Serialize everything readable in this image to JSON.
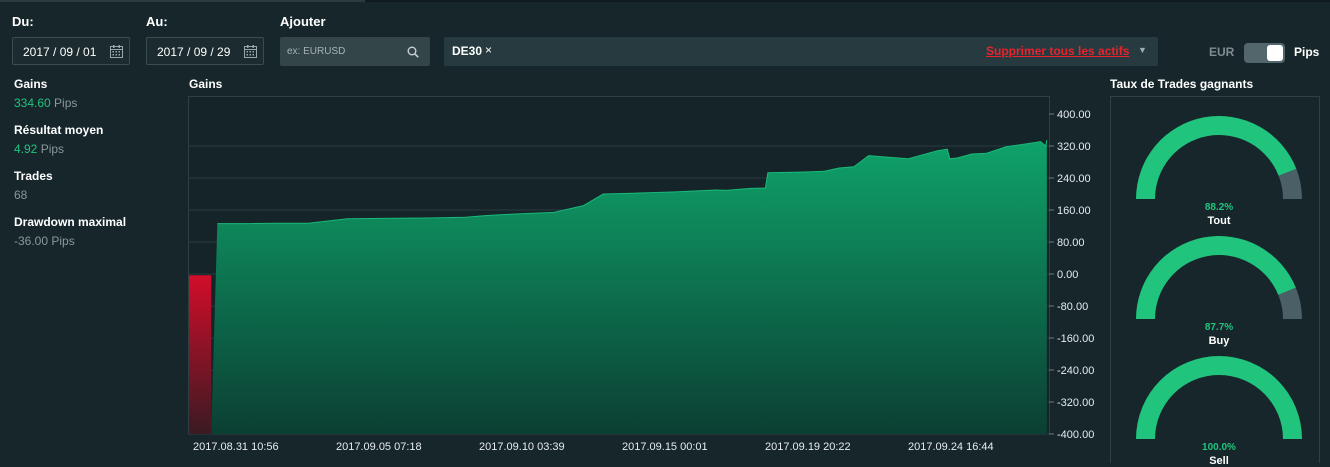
{
  "filters": {
    "from_label": "Du:",
    "from_value": "2017 / 09 / 01",
    "to_label": "Au:",
    "to_value": "2017 / 09 / 29",
    "add_label": "Ajouter",
    "search_placeholder": "ex: EURUSD"
  },
  "assets": {
    "chips": [
      "DE30"
    ],
    "remove_icon": "×",
    "clear_all_label": "Supprimer tous les actifs",
    "dropdown_icon": "▼"
  },
  "unit_toggle": {
    "left_label": "EUR",
    "right_label": "Pips",
    "selected": "Pips"
  },
  "stats": [
    {
      "label": "Gains",
      "value": "334.60",
      "unit": "Pips",
      "highlight": true
    },
    {
      "label": "Résultat moyen",
      "value": "4.92",
      "unit": "Pips",
      "highlight": true
    },
    {
      "label": "Trades",
      "value": "68",
      "unit": "",
      "highlight": false
    },
    {
      "label": "Drawdown maximal",
      "value": "-36.00",
      "unit": "Pips",
      "highlight": false
    }
  ],
  "colors": {
    "positive": "#0f9a63",
    "negative": "#d0112b",
    "accent": "#21c47d",
    "gauge_rest": "#4a5f66"
  },
  "chart_data": {
    "type": "area",
    "title": "Gains",
    "ylim": [
      -400,
      400
    ],
    "yticks": [
      "400.00",
      "320.00",
      "240.00",
      "160.00",
      "80.00",
      "0.00",
      "-80.00",
      "-160.00",
      "-240.00",
      "-320.00",
      "-400.00"
    ],
    "xticks": [
      "2017.08.31 10:56",
      "2017.09.05 07:18",
      "2017.09.10 03:39",
      "2017.09.15 00:01",
      "2017.09.19 20:22",
      "2017.09.24 16:44"
    ],
    "grid": true,
    "series": [
      {
        "x": [
          "2017-08-31 10:56",
          "2017-09-01 05:00",
          "2017-09-01 10:00",
          "2017-09-02 12:00",
          "2017-09-03 08:00",
          "2017-09-04 12:00",
          "2017-09-05 20:00",
          "2017-09-07 00:00",
          "2017-09-08 12:00",
          "2017-09-09 20:00",
          "2017-09-10 12:00",
          "2017-09-11 12:00",
          "2017-09-12 20:00",
          "2017-09-13 20:00",
          "2017-09-14 12:00",
          "2017-09-15 12:00",
          "2017-09-16 20:00",
          "2017-09-18 08:00",
          "2017-09-18 16:00",
          "2017-09-19 12:00",
          "2017-09-20 00:00",
          "2017-09-20 02:00",
          "2017-09-21 08:00",
          "2017-09-22 00:00",
          "2017-09-22 12:00",
          "2017-09-23 00:00",
          "2017-09-23 12:00",
          "2017-09-24 20:00",
          "2017-09-25 20:00",
          "2017-09-26 04:00",
          "2017-09-26 06:00",
          "2017-09-26 12:00",
          "2017-09-27 00:00",
          "2017-09-27 12:00",
          "2017-09-27 20:00",
          "2017-09-28 04:00",
          "2017-09-29 08:00",
          "2017-09-29 12:00",
          "2017-09-29 13:00"
        ],
        "y": [
          -3,
          -3,
          126,
          126,
          127,
          127,
          138,
          139,
          140,
          142,
          146,
          150,
          154,
          171,
          200,
          202,
          205,
          210,
          209,
          214,
          215,
          253,
          255,
          257,
          265,
          268,
          296,
          288,
          308,
          312,
          288,
          290,
          300,
          302,
          310,
          318,
          331,
          320,
          334.6
        ]
      }
    ]
  },
  "win_rate": {
    "title": "Taux de Trades gagnants",
    "gauges": [
      {
        "label": "Tout",
        "value": 88.2,
        "value_label": "88.2%"
      },
      {
        "label": "Buy",
        "value": 87.7,
        "value_label": "87.7%"
      },
      {
        "label": "Sell",
        "value": 100.0,
        "value_label": "100.0%"
      }
    ]
  }
}
